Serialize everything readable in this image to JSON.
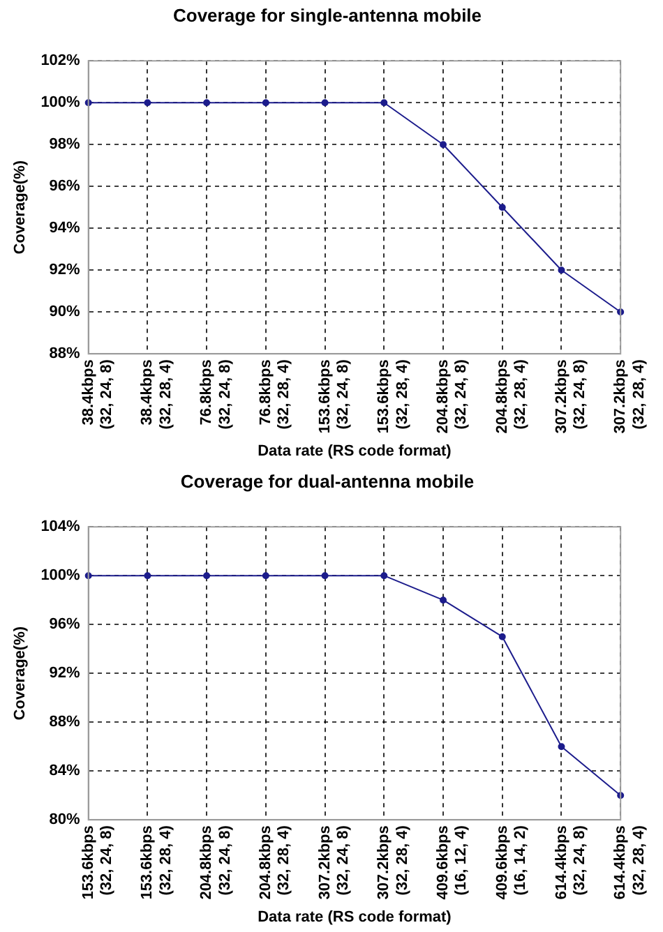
{
  "chart_data": [
    {
      "type": "line",
      "title": "Coverage for single-antenna mobile",
      "xlabel": "Data rate (RS code format)",
      "ylabel": "Coverage(%)",
      "categories": [
        "38.4kbps\n(32, 24, 8)",
        "38.4kbps\n(32, 28, 4)",
        "76.8kbps\n(32, 24, 8)",
        "76.8kbps\n(32, 28, 4)",
        "153.6kbps\n(32, 24, 8)",
        "153.6kbps\n(32, 28, 4)",
        "204.8kbps\n(32, 24, 8)",
        "204.8kbps\n(32, 28, 4)",
        "307.2kbps\n(32, 24, 8)",
        "307.2kbps\n(32, 28, 4)"
      ],
      "series": [
        {
          "color": "#1c1c8c",
          "values": [
            100,
            100,
            100,
            100,
            100,
            100,
            98,
            95,
            92,
            90
          ]
        }
      ],
      "ylim": [
        88,
        102
      ],
      "yticks": [
        {
          "value": 88,
          "label": "88%"
        },
        {
          "value": 90,
          "label": "90%"
        },
        {
          "value": 92,
          "label": "92%"
        },
        {
          "value": 94,
          "label": "94%"
        },
        {
          "value": 96,
          "label": "96%"
        },
        {
          "value": 98,
          "label": "98%"
        },
        {
          "value": 100,
          "label": "100%"
        },
        {
          "value": 102,
          "label": "102%"
        }
      ],
      "grid": true,
      "legend": false,
      "marker": "circle",
      "line_style": "solid"
    },
    {
      "type": "line",
      "title": "Coverage for dual-antenna mobile",
      "xlabel": "Data rate (RS code format)",
      "ylabel": "Coverage(%)",
      "categories": [
        "153.6kbps\n(32, 24, 8)",
        "153.6kbps\n(32, 28, 4)",
        "204.8kbps\n(32, 24, 8)",
        "204.8kbps\n(32, 28, 4)",
        "307.2kbps\n(32, 24, 8)",
        "307.2kbps\n(32, 28, 4)",
        "409.6kbps\n(16, 12, 4)",
        "409.6kbps\n(16, 14, 2)",
        "614.4kbps\n(32, 24, 8)",
        "614.4kbps\n(32, 28, 4)"
      ],
      "series": [
        {
          "color": "#1c1c8c",
          "values": [
            100,
            100,
            100,
            100,
            100,
            100,
            98,
            95,
            86,
            82
          ]
        }
      ],
      "ylim": [
        80,
        104
      ],
      "yticks": [
        {
          "value": 80,
          "label": "80%"
        },
        {
          "value": 84,
          "label": "84%"
        },
        {
          "value": 88,
          "label": "88%"
        },
        {
          "value": 92,
          "label": "92%"
        },
        {
          "value": 96,
          "label": "96%"
        },
        {
          "value": 100,
          "label": "100%"
        },
        {
          "value": 104,
          "label": "104%"
        }
      ],
      "grid": true,
      "legend": false,
      "marker": "circle",
      "line_style": "solid"
    }
  ]
}
